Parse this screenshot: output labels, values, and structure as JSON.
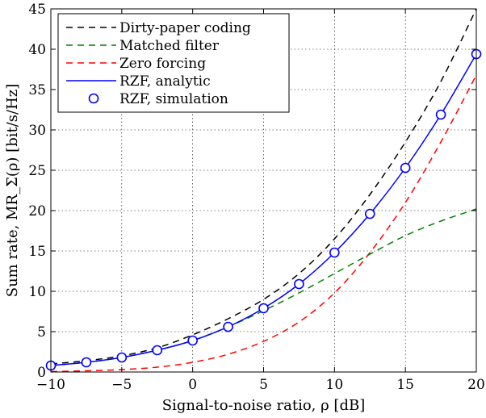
{
  "chart_data": {
    "type": "line",
    "xlabel": "Signal-to-noise ratio, ρ [dB]",
    "ylabel": "Sum rate, MR_Σ(ρ) [bit/s/Hz]",
    "xlim": [
      -10,
      20
    ],
    "ylim": [
      0,
      45
    ],
    "xticks": [
      "−10",
      "−5",
      "0",
      "5",
      "10",
      "15",
      "20"
    ],
    "yticks": [
      "0",
      "5",
      "10",
      "15",
      "20",
      "25",
      "30",
      "35",
      "40",
      "45"
    ],
    "grid": true,
    "legend_position": "top-left",
    "x": [
      -10,
      -7.5,
      -5,
      -2.5,
      0,
      2.5,
      5,
      7.5,
      10,
      12.5,
      15,
      17.5,
      20
    ],
    "series": [
      {
        "name": "Dirty-paper coding",
        "style": "dashed",
        "color": "#000000",
        "values": [
          1.0,
          1.4,
          2.0,
          3.0,
          4.6,
          6.6,
          9.0,
          12.2,
          16.5,
          22.0,
          28.5,
          36.0,
          45.0
        ]
      },
      {
        "name": "Matched filter",
        "style": "dashed",
        "color": "#008000",
        "values": [
          0.8,
          1.2,
          1.8,
          2.7,
          3.9,
          5.6,
          7.6,
          9.8,
          12.2,
          14.6,
          16.9,
          18.7,
          20.2
        ]
      },
      {
        "name": "Zero forcing",
        "style": "dashed",
        "color": "#ff0000",
        "values": [
          0.05,
          0.15,
          0.3,
          0.6,
          1.2,
          2.2,
          3.8,
          6.2,
          9.8,
          14.8,
          21.0,
          28.5,
          36.8
        ]
      },
      {
        "name": "RZF, analytic",
        "style": "solid",
        "color": "#0000ff",
        "values": [
          0.8,
          1.2,
          1.8,
          2.7,
          3.9,
          5.6,
          7.9,
          10.9,
          14.8,
          19.6,
          25.3,
          31.9,
          39.4
        ]
      },
      {
        "name": "RZF, simulation",
        "style": "markers",
        "color": "#0000ff",
        "values": [
          0.8,
          1.2,
          1.8,
          2.7,
          3.9,
          5.6,
          7.9,
          10.9,
          14.8,
          19.6,
          25.3,
          31.9,
          39.4
        ]
      }
    ]
  }
}
